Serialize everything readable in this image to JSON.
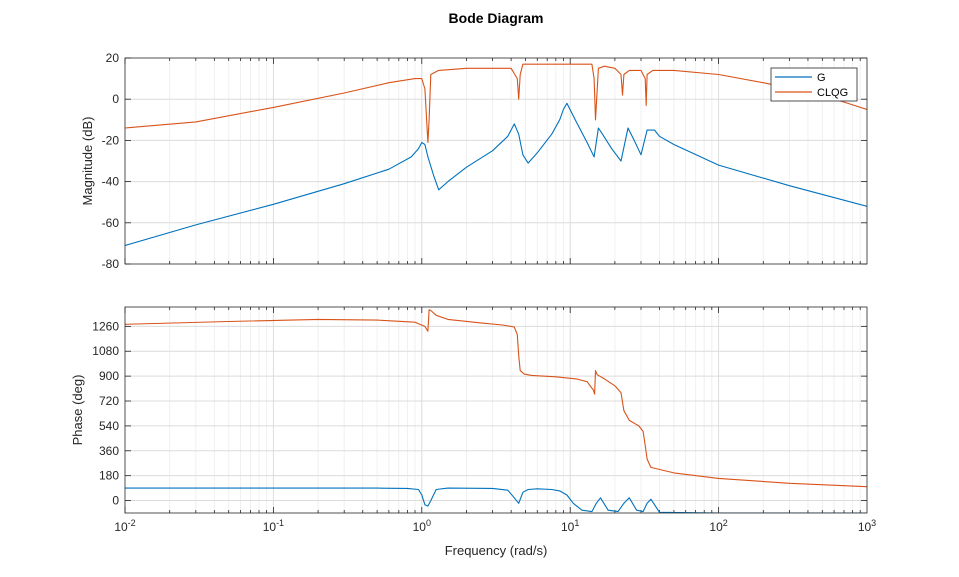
{
  "chart_data": [
    {
      "type": "line",
      "panel": "magnitude",
      "title": "Bode Diagram",
      "xlabel": "Frequency (rad/s)",
      "ylabel": "Magnitude (dB)",
      "xscale": "log",
      "xlim": [
        0.01,
        1000
      ],
      "ylim": [
        -80,
        20
      ],
      "yticks": [
        -80,
        -60,
        -40,
        -20,
        0,
        20
      ],
      "grid": true,
      "legend": "top-right",
      "series": [
        {
          "name": "G",
          "color": "#0072BD",
          "x": [
            0.01,
            0.03,
            0.1,
            0.3,
            0.6,
            0.85,
            0.95,
            1.0,
            1.05,
            1.1,
            1.2,
            1.3,
            1.5,
            2.0,
            3.0,
            3.8,
            4.2,
            4.5,
            4.8,
            5.2,
            6.0,
            7.5,
            8.5,
            9.0,
            9.5,
            11.0,
            13.0,
            14.5,
            15.5,
            16.5,
            19.0,
            22.0,
            24.5,
            27.0,
            30.0,
            33.0,
            37.0,
            40.0,
            50.0,
            100.0,
            300.0,
            1000.0
          ],
          "y": [
            -71,
            -61,
            -51,
            -41,
            -34,
            -28,
            -24,
            -21,
            -22,
            -28,
            -37,
            -44,
            -40,
            -33,
            -25,
            -18,
            -12,
            -17,
            -27,
            -31,
            -26,
            -17,
            -10,
            -5,
            -2,
            -11,
            -21,
            -28,
            -14,
            -17,
            -24,
            -30,
            -14,
            -20,
            -27,
            -15,
            -15,
            -18,
            -22,
            -32,
            -42,
            -52
          ]
        },
        {
          "name": "CLQG",
          "color": "#D95319",
          "x": [
            0.01,
            0.03,
            0.1,
            0.3,
            0.6,
            0.9,
            1.0,
            1.05,
            1.1,
            1.12,
            1.15,
            1.3,
            2.0,
            3.0,
            4.0,
            4.4,
            4.5,
            4.6,
            4.8,
            6.0,
            10.0,
            14.0,
            14.5,
            14.8,
            15.5,
            17.0,
            20.0,
            22.0,
            22.5,
            23.0,
            25.0,
            30.0,
            32.0,
            32.5,
            33.0,
            36.0,
            50.0,
            100.0,
            200.0,
            500.0,
            1000.0
          ],
          "y": [
            -14,
            -11,
            -4,
            3,
            8,
            10,
            10,
            5,
            -21,
            -10,
            12,
            14,
            15,
            15,
            15,
            10,
            0,
            12,
            17,
            17,
            17,
            17,
            10,
            -10,
            15,
            16,
            15,
            12,
            2,
            12,
            14,
            14,
            10,
            -3,
            12,
            14,
            14,
            12,
            8,
            2,
            -5
          ]
        }
      ]
    },
    {
      "type": "line",
      "panel": "phase",
      "xlabel": "Frequency (rad/s)",
      "ylabel": "Phase (deg)",
      "xscale": "log",
      "xlim": [
        0.01,
        1000
      ],
      "xticks": [
        "10-2",
        "10-1",
        "100",
        "101",
        "102",
        "103"
      ],
      "ylim": [
        -90,
        1400
      ],
      "yticks": [
        0,
        180,
        360,
        540,
        720,
        900,
        1080,
        1260
      ],
      "grid": true,
      "series": [
        {
          "name": "G",
          "color": "#0072BD",
          "x": [
            0.01,
            0.1,
            0.5,
            0.8,
            0.95,
            1.0,
            1.05,
            1.1,
            1.15,
            1.25,
            1.5,
            3.0,
            3.8,
            4.2,
            4.5,
            4.8,
            5.2,
            6.0,
            7.5,
            8.5,
            9.5,
            10.5,
            12.0,
            14.0,
            15.0,
            16.0,
            18.0,
            21.0,
            23.0,
            25.0,
            28.0,
            31.0,
            33.0,
            35.0,
            40.0,
            100.0,
            1000.0
          ],
          "y": [
            90,
            90,
            90,
            88,
            80,
            40,
            -30,
            -40,
            0,
            80,
            90,
            88,
            75,
            20,
            -20,
            60,
            80,
            85,
            80,
            70,
            40,
            -20,
            -70,
            -80,
            -20,
            20,
            -70,
            -80,
            -20,
            20,
            -70,
            -80,
            -20,
            10,
            -85,
            -90,
            -90
          ]
        },
        {
          "name": "CLQG",
          "color": "#D95319",
          "x": [
            0.01,
            0.05,
            0.2,
            0.5,
            0.9,
            1.05,
            1.1,
            1.12,
            1.15,
            1.25,
            1.5,
            2.5,
            3.5,
            4.2,
            4.4,
            4.5,
            4.6,
            4.9,
            5.5,
            8.0,
            11.0,
            13.0,
            14.3,
            14.6,
            14.8,
            15.2,
            17.0,
            20.0,
            22.0,
            23.0,
            25.0,
            29.0,
            31.0,
            32.0,
            33.0,
            35.0,
            50.0,
            100.0,
            300.0,
            1000.0
          ],
          "y": [
            1275,
            1295,
            1310,
            1305,
            1290,
            1260,
            1225,
            1380,
            1375,
            1340,
            1310,
            1285,
            1270,
            1255,
            1200,
            1050,
            940,
            915,
            905,
            895,
            880,
            860,
            800,
            770,
            940,
            910,
            880,
            830,
            780,
            650,
            580,
            540,
            500,
            400,
            300,
            240,
            200,
            160,
            125,
            100
          ]
        }
      ]
    }
  ],
  "labels": {
    "title": "Bode Diagram",
    "xlabel": "Frequency (rad/s)",
    "ylabel_top": "Magnitude (dB)",
    "ylabel_bottom": "Phase (deg)",
    "x_tick_base": "10",
    "x_tick_exponents": [
      "-2",
      "-1",
      "0",
      "1",
      "2",
      "3"
    ],
    "mag_ticks": [
      "20",
      "0",
      "-20",
      "-40",
      "-60",
      "-80"
    ],
    "phase_ticks": [
      "1260",
      "1080",
      "900",
      "720",
      "540",
      "360",
      "180",
      "0"
    ],
    "legend": [
      "G",
      "CLQG"
    ]
  }
}
